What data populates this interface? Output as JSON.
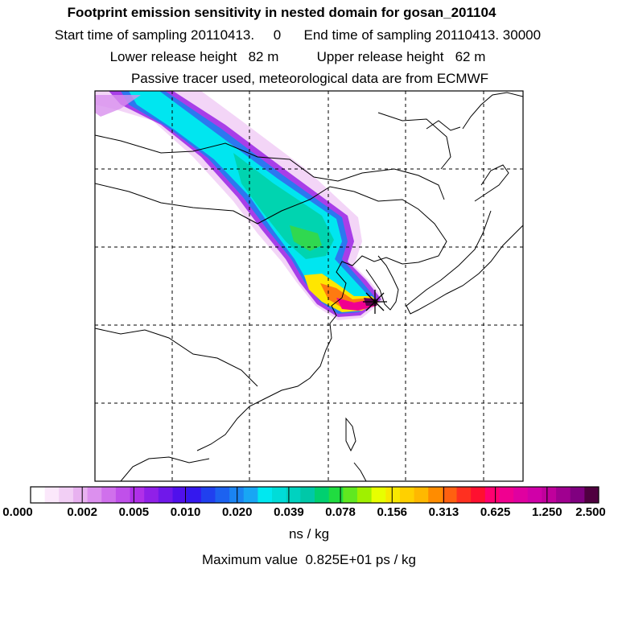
{
  "header": {
    "title": "Footprint emission sensitivity in nested domain for gosan_201104",
    "sampling_line": "Start time of sampling 20110413.     0      End time of sampling 20110413. 30000",
    "release_line": "Lower release height   82 m          Upper release height   62 m",
    "tracer_line": "Passive tracer used, meteorological data are from ECMWF"
  },
  "colorbar": {
    "tick_labels": [
      "0.000",
      "0.002",
      "0.005",
      "0.010",
      "0.020",
      "0.039",
      "0.078",
      "0.156",
      "0.313",
      "0.625",
      "1.250",
      "2.500"
    ],
    "colors": [
      "#ffffff",
      "#fbe8fb",
      "#f2cff5",
      "#e8b2f0",
      "#dc90ee",
      "#d070ec",
      "#c050ea",
      "#b030e8",
      "#9020e8",
      "#7018ea",
      "#5010ec",
      "#3418ee",
      "#2040ef",
      "#1c62f0",
      "#1a84f2",
      "#18a6f4",
      "#00e8f0",
      "#00dcd8",
      "#00d2c0",
      "#00c8a8",
      "#00d070",
      "#20dc40",
      "#60e820",
      "#a0f000",
      "#e8ff00",
      "#f8e800",
      "#ffd000",
      "#ffb800",
      "#ff8c00",
      "#ff6010",
      "#ff3020",
      "#ff1030",
      "#ff0070",
      "#f00090",
      "#e000a0",
      "#d000a8",
      "#c0009c",
      "#a00090",
      "#800080",
      "#500040"
    ],
    "unit": "ns / kg"
  },
  "footer": {
    "max_value": "Maximum value  0.825E+01 ps / kg"
  },
  "map": {
    "receptor_marker": "star-marker",
    "grid_lines": "dashed"
  }
}
